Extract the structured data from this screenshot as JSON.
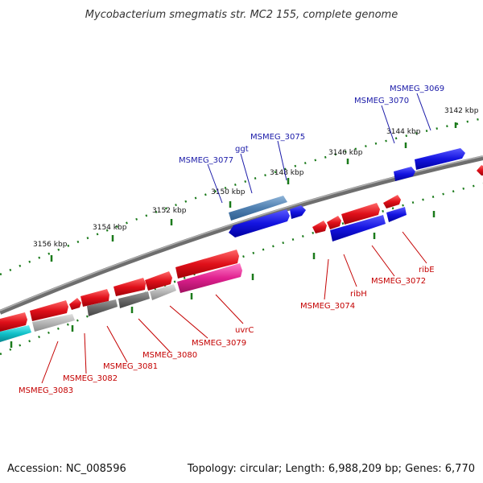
{
  "title": "Mycobacterium smegmatis str. MC2 155, complete genome",
  "footer": {
    "accession": "Accession: NC_008596",
    "summary": "Topology: circular; Length: 6,988,209 bp; Genes: 6,770"
  },
  "ticks": [
    "3142 kbp",
    "3144 kbp",
    "3146 kbp",
    "3148 kbp",
    "3150 kbp",
    "3152 kbp",
    "3154 kbp",
    "3156 kbp"
  ],
  "genes_top": [
    "MSMEG_3069",
    "MSMEG_3070",
    "MSMEG_3075",
    "ggt",
    "MSMEG_3077"
  ],
  "genes_bottom": [
    "ribE",
    "MSMEG_3072",
    "ribH",
    "MSMEG_3074",
    "uvrC",
    "MSMEG_3079",
    "MSMEG_3080",
    "MSMEG_3081",
    "MSMEG_3082",
    "MSMEG_3083"
  ],
  "colors": {
    "backbone": "#8a8a8a",
    "plus_blue": "#1414e0",
    "steel_blue": "#4f7fb0",
    "minus_red": "#e0101a",
    "magenta": "#e0208f",
    "dark_gray": "#6a6a6a",
    "light_gray": "#b5b5b5",
    "cyan": "#10c0c8",
    "tick_green": "#1a7a1a"
  }
}
